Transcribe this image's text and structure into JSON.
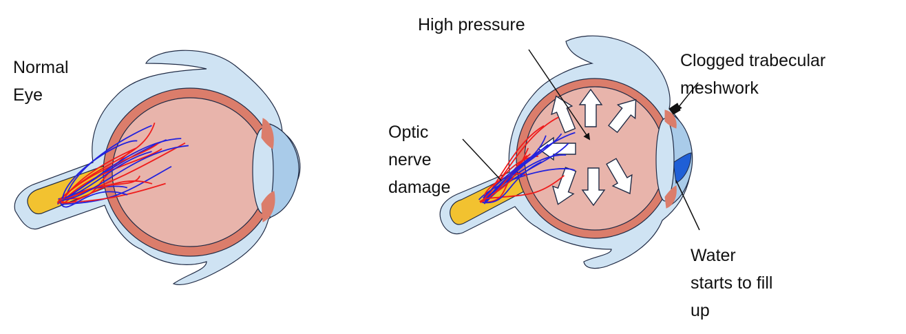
{
  "labels": {
    "normal_eye": [
      "Normal",
      "Eye"
    ],
    "high_pressure": "High pressure",
    "clogged": [
      "Clogged trabecular",
      "meshwork"
    ],
    "optic": [
      "Optic",
      "nerve",
      "damage"
    ],
    "water": [
      "Water",
      "starts to fill",
      "up"
    ]
  },
  "colors": {
    "outer_layer": "#cfe3f3",
    "outline": "#1f2a44",
    "choroid": "#db7d6b",
    "vitreous": "#e8b4ab",
    "lens": "#cfe3f3",
    "cornea": "#a9cbe9",
    "optic_nerve": "#f2c230",
    "vessel_red": "#ee1c1c",
    "vessel_blue": "#2222dd",
    "fluid": "#1f5fd6",
    "meshwork": "#111111",
    "arrow_fill": "#ffffff"
  }
}
